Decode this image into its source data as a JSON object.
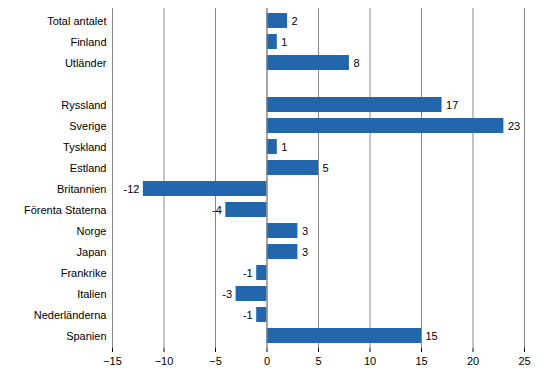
{
  "chart_data": {
    "type": "bar",
    "orientation": "horizontal",
    "categories": [
      "Total antalet",
      "Finland",
      "Utländer",
      null,
      "Ryssland",
      "Sverige",
      "Tyskland",
      "Estland",
      "Britannien",
      "Förenta Staterna",
      "Norge",
      "Japan",
      "Frankrike",
      "Italien",
      "Nederländerna",
      "Spanien"
    ],
    "values": [
      2,
      1,
      8,
      null,
      17,
      23,
      1,
      5,
      -12,
      -4,
      3,
      3,
      -1,
      -3,
      -1,
      15
    ],
    "color": "#2266ac",
    "xlim": [
      -15,
      25
    ],
    "xticks": [
      -15,
      -10,
      -5,
      0,
      5,
      10,
      15,
      20,
      25
    ],
    "grid": true,
    "data_labels": true
  }
}
